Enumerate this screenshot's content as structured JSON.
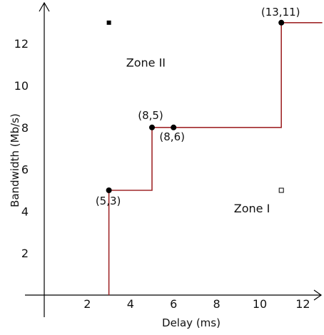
{
  "chart_data": {
    "type": "line",
    "xlabel": "Delay (ms)",
    "ylabel": "Bandwidth (Mb/s)",
    "xlim": [
      0,
      13
    ],
    "ylim": [
      0,
      13
    ],
    "x_ticks": [
      "2",
      "4",
      "6",
      "8",
      "10",
      "12"
    ],
    "y_ticks": [
      "2",
      "4",
      "6",
      "8",
      "10",
      "12"
    ],
    "grid": false,
    "series": [
      {
        "color": "#a0282a",
        "step_path": [
          [
            3,
            0
          ],
          [
            3,
            5
          ],
          [
            5,
            5
          ],
          [
            5,
            8
          ],
          [
            11,
            8
          ],
          [
            11,
            13
          ],
          [
            12.9,
            13
          ]
        ]
      }
    ],
    "points": [
      {
        "x": 3,
        "y": 5,
        "label": "(5,3)"
      },
      {
        "x": 5,
        "y": 8,
        "label": "(8,5)"
      },
      {
        "x": 6,
        "y": 8,
        "label": "(8,6)"
      },
      {
        "x": 11,
        "y": 13,
        "label": "(13,11)"
      }
    ],
    "zones": [
      {
        "label": "Zone II",
        "x": 3.8,
        "y": 10.9
      },
      {
        "label": "Zone I",
        "x": 8.8,
        "y": 3.95
      }
    ],
    "markers": [
      {
        "style": "filled-square",
        "x": 3,
        "y": 13
      },
      {
        "style": "open-square",
        "x": 11,
        "y": 5
      }
    ]
  }
}
